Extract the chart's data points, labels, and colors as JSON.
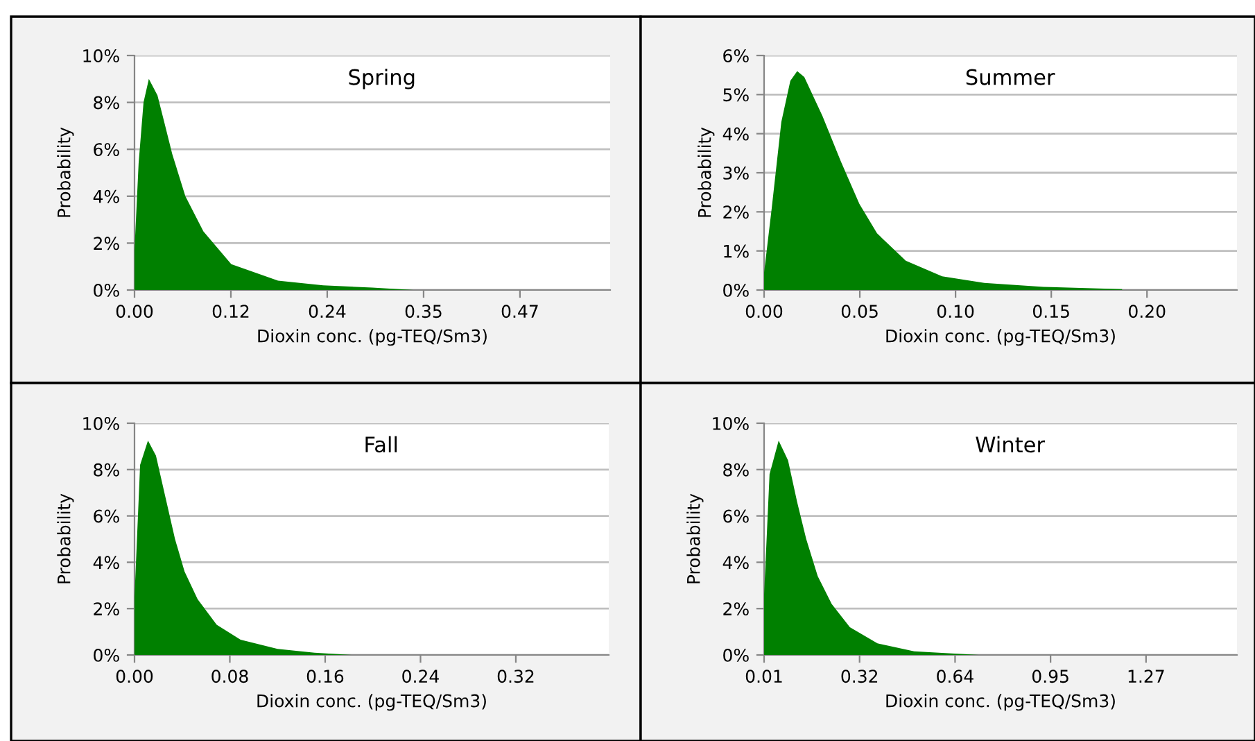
{
  "chart_data": [
    {
      "type": "area",
      "title": "Spring",
      "xlabel": "Dioxin conc. (pg-TEQ/Sm3)",
      "ylabel": "Probability",
      "color": "#008000",
      "grid": "y",
      "x": [
        0,
        0.005,
        0.011,
        0.0175,
        0.028,
        0.036,
        0.046,
        0.062,
        0.084,
        0.118,
        0.175,
        0.23,
        0.29,
        0.34
      ],
      "values": [
        1.7,
        5.4,
        8,
        9,
        8.3,
        7.2,
        5.8,
        4,
        2.5,
        1.1,
        0.4,
        0.2,
        0.1,
        0
      ],
      "xlim": [
        0,
        0.58
      ],
      "xticks": [
        {
          "value": 0,
          "label": "0.00"
        },
        {
          "value": 0.1175,
          "label": "0.12"
        },
        {
          "value": 0.235,
          "label": "0.24"
        },
        {
          "value": 0.3525,
          "label": "0.35"
        },
        {
          "value": 0.47,
          "label": "0.47"
        }
      ],
      "ylim": [
        0,
        10
      ],
      "yticks": [
        {
          "value": 0,
          "label": "0%"
        },
        {
          "value": 2,
          "label": "2%"
        },
        {
          "value": 4,
          "label": "4%"
        },
        {
          "value": 6,
          "label": "6%"
        },
        {
          "value": 8,
          "label": "8%"
        },
        {
          "value": 10,
          "label": "10%"
        }
      ]
    },
    {
      "type": "area",
      "title": "Summer",
      "xlabel": "Dioxin conc. (pg-TEQ/Sm3)",
      "ylabel": "Probability",
      "color": "#008000",
      "grid": "y",
      "x": [
        0,
        0.004,
        0.009,
        0.0137,
        0.0173,
        0.021,
        0.0305,
        0.04,
        0.0498,
        0.059,
        0.074,
        0.093,
        0.115,
        0.146,
        0.187
      ],
      "values": [
        0.45,
        2.1,
        4.3,
        5.35,
        5.6,
        5.45,
        4.45,
        3.3,
        2.2,
        1.45,
        0.75,
        0.35,
        0.18,
        0.08,
        0.02
      ],
      "xlim": [
        0,
        0.247
      ],
      "xticks": [
        {
          "value": 0,
          "label": "0.00"
        },
        {
          "value": 0.05,
          "label": "0.05"
        },
        {
          "value": 0.1,
          "label": "0.10"
        },
        {
          "value": 0.15,
          "label": "0.15"
        },
        {
          "value": 0.2,
          "label": "0.20"
        }
      ],
      "ylim": [
        0,
        6
      ],
      "yticks": [
        {
          "value": 0,
          "label": "0%"
        },
        {
          "value": 1,
          "label": "1%"
        },
        {
          "value": 2,
          "label": "2%"
        },
        {
          "value": 3,
          "label": "3%"
        },
        {
          "value": 4,
          "label": "4%"
        },
        {
          "value": 5,
          "label": "5%"
        },
        {
          "value": 6,
          "label": "6%"
        }
      ]
    },
    {
      "type": "area",
      "title": "Fall",
      "xlabel": "Dioxin conc. (pg-TEQ/Sm3)",
      "ylabel": "Probability",
      "color": "#008000",
      "grid": "y",
      "x": [
        0,
        0.0047,
        0.0113,
        0.018,
        0.026,
        0.034,
        0.042,
        0.053,
        0.069,
        0.089,
        0.12,
        0.151,
        0.182
      ],
      "values": [
        2.5,
        8.2,
        9.25,
        8.6,
        6.8,
        5,
        3.6,
        2.4,
        1.3,
        0.66,
        0.26,
        0.1,
        0
      ],
      "xlim": [
        0,
        0.398
      ],
      "xticks": [
        {
          "value": 0,
          "label": "0.00"
        },
        {
          "value": 0.08,
          "label": "0.08"
        },
        {
          "value": 0.16,
          "label": "0.16"
        },
        {
          "value": 0.24,
          "label": "0.24"
        },
        {
          "value": 0.32,
          "label": "0.32"
        }
      ],
      "ylim": [
        0,
        10
      ],
      "yticks": [
        {
          "value": 0,
          "label": "0%"
        },
        {
          "value": 2,
          "label": "2%"
        },
        {
          "value": 4,
          "label": "4%"
        },
        {
          "value": 6,
          "label": "6%"
        },
        {
          "value": 8,
          "label": "8%"
        },
        {
          "value": 10,
          "label": "10%"
        }
      ]
    },
    {
      "type": "area",
      "title": "Winter",
      "xlabel": "Dioxin conc. (pg-TEQ/Sm3)",
      "ylabel": "Probability",
      "color": "#008000",
      "grid": "y",
      "x": [
        0.01,
        0.028,
        0.058,
        0.089,
        0.119,
        0.149,
        0.187,
        0.233,
        0.293,
        0.384,
        0.505,
        0.718
      ],
      "values": [
        2.6,
        7.8,
        9.25,
        8.4,
        6.6,
        5,
        3.4,
        2.2,
        1.2,
        0.5,
        0.16,
        0
      ],
      "xlim": [
        0.01,
        1.57
      ],
      "xticks": [
        {
          "value": 0.01,
          "label": "0.01"
        },
        {
          "value": 0.325,
          "label": "0.32"
        },
        {
          "value": 0.64,
          "label": "0.64"
        },
        {
          "value": 0.955,
          "label": "0.95"
        },
        {
          "value": 1.27,
          "label": "1.27"
        }
      ],
      "ylim": [
        0,
        10
      ],
      "yticks": [
        {
          "value": 0,
          "label": "0%"
        },
        {
          "value": 2,
          "label": "2%"
        },
        {
          "value": 4,
          "label": "4%"
        },
        {
          "value": 6,
          "label": "6%"
        },
        {
          "value": 8,
          "label": "8%"
        },
        {
          "value": 10,
          "label": "10%"
        }
      ]
    }
  ]
}
